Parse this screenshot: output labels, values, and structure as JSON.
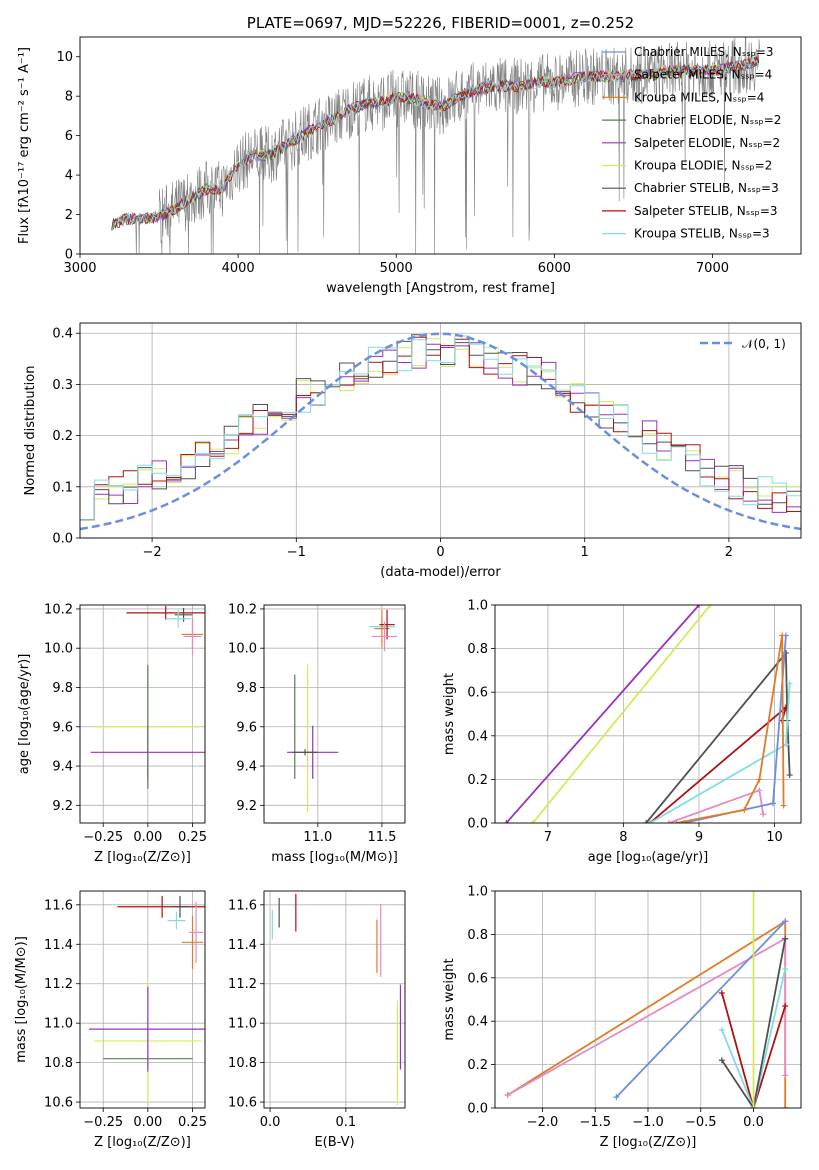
{
  "chart_data": [
    {
      "type": "line",
      "title": "PLATE=0697, MJD=52226, FIBERID=0001, z=0.252",
      "xlabel": "wavelength [Angstrom, rest frame]",
      "ylabel": "Flux [fλ10⁻¹⁷ erg cm⁻² s⁻¹ A⁻¹]",
      "xlim": [
        3000,
        7560
      ],
      "ylim": [
        0,
        11
      ],
      "xticks": [
        "3000",
        "4000",
        "5000",
        "6000",
        "7000"
      ],
      "yticks": [
        "0",
        "2",
        "4",
        "6",
        "8",
        "10"
      ],
      "grid": false,
      "legend_position": "top-right",
      "data_color": "#808080",
      "continuum": {
        "x": [
          3200,
          3300,
          3400,
          3500,
          3600,
          3700,
          3800,
          3900,
          4000,
          4100,
          4200,
          4300,
          4400,
          4500,
          4600,
          4700,
          4800,
          4900,
          5000,
          5100,
          5200,
          5300,
          5400,
          5500,
          5600,
          5700,
          5800,
          5900,
          6000,
          6200,
          6400,
          6600,
          6800,
          7000,
          7200,
          7300
        ],
        "y": [
          1.5,
          1.8,
          1.8,
          1.9,
          2.3,
          2.8,
          3.3,
          3.3,
          4.5,
          5.0,
          5.0,
          5.5,
          6.0,
          6.5,
          6.8,
          7.3,
          7.6,
          7.7,
          7.9,
          7.9,
          7.6,
          7.5,
          8.0,
          8.3,
          8.5,
          8.5,
          8.5,
          8.7,
          8.7,
          9.0,
          9.0,
          9.1,
          9.3,
          9.3,
          9.6,
          9.8
        ]
      },
      "series": [
        {
          "name": "Chabrier MILES, N_SSP=3",
          "color": "#6a8fe0"
        },
        {
          "name": "Salpeter MILES, N_SSP=4",
          "color": "#e58bc0"
        },
        {
          "name": "Kroupa MILES, N_SSP=4",
          "color": "#e07b2a"
        },
        {
          "name": "Chabrier ELODIE, N_SSP=2",
          "color": "#5a7a5a"
        },
        {
          "name": "Salpeter ELODIE, N_SSP=2",
          "color": "#9b30c0"
        },
        {
          "name": "Kroupa ELODIE, N_SSP=2",
          "color": "#d4ea5a"
        },
        {
          "name": "Chabrier STELIB, N_SSP=3",
          "color": "#505050"
        },
        {
          "name": "Salpeter STELIB, N_SSP=3",
          "color": "#b01010"
        },
        {
          "name": "Kroupa STELIB, N_SSP=3",
          "color": "#80dde0"
        }
      ]
    },
    {
      "type": "line",
      "xlabel": "(data-model)/error",
      "ylabel": "Normed distribution",
      "xlim": [
        -2.5,
        2.5
      ],
      "ylim": [
        0,
        0.42
      ],
      "xticks": [
        "−2",
        "−1",
        "0",
        "1",
        "2"
      ],
      "yticks": [
        "0.0",
        "0.1",
        "0.2",
        "0.3",
        "0.4"
      ],
      "grid": true,
      "legend_position": "top-right",
      "legend_label": "𝒩(0, 1)",
      "gauss": {
        "mu": 0,
        "sigma": 1,
        "color": "#6a8fe0"
      },
      "hist_colors": [
        "#d4ea5a",
        "#9b30c0",
        "#505050",
        "#b01010",
        "#80dde0"
      ],
      "hist_centers": [
        -2.3,
        -1.8,
        -1.3,
        -0.8,
        -0.3,
        0.0,
        0.3,
        0.8,
        1.3,
        1.8,
        2.3
      ],
      "hist_values": [
        0.05,
        0.08,
        0.16,
        0.25,
        0.31,
        0.35,
        0.33,
        0.29,
        0.22,
        0.14,
        0.08
      ]
    },
    {
      "type": "scatter",
      "xlabel": "Z [log₁₀(Z/Z⊙)]",
      "ylabel": "age  [log₁₀(age/yr)]",
      "xlim": [
        -0.38,
        0.32
      ],
      "ylim": [
        9.11,
        10.22
      ],
      "xticks": [
        "−0.25",
        "0.00",
        "0.25"
      ],
      "yticks": [
        "9.2",
        "9.4",
        "9.6",
        "9.8",
        "10.0",
        "10.2"
      ],
      "grid": true,
      "points": [
        {
          "x": 0.0,
          "y": 9.6,
          "xerr": 0.3,
          "yerr": 0.3,
          "color": "#d4ea5a"
        },
        {
          "x": 0.0,
          "y": 9.47,
          "xerr": 0.32,
          "yerr": 0.12,
          "color": "#9b30c0"
        },
        {
          "x": 0.0,
          "y": 9.6,
          "xerr": 0.0,
          "yerr": 0.3,
          "color": "#5a7a5a"
        },
        {
          "x": 0.1,
          "y": 10.18,
          "xerr": 0.22,
          "yerr": 0.02,
          "color": "#b01010"
        },
        {
          "x": 0.2,
          "y": 10.17,
          "xerr": 0.05,
          "yerr": 0.02,
          "color": "#505050"
        },
        {
          "x": 0.17,
          "y": 10.15,
          "xerr": 0.07,
          "yerr": 0.03,
          "color": "#80dde0"
        },
        {
          "x": 0.25,
          "y": 10.07,
          "xerr": 0.06,
          "yerr": 0.06,
          "color": "#e07b2a"
        },
        {
          "x": 0.25,
          "y": 10.06,
          "xerr": 0.05,
          "yerr": 0.08,
          "color": "#e58bc0"
        }
      ]
    },
    {
      "type": "scatter",
      "xlabel": "mass [log₁₀(M/M⊙)]",
      "ylabel": "",
      "xlim": [
        10.58,
        11.68
      ],
      "ylim": [
        9.11,
        10.22
      ],
      "xticks": [
        "11.0",
        "11.5"
      ],
      "yticks": [
        "9.2",
        "9.4",
        "9.6",
        "9.8",
        "10.0",
        "10.2"
      ],
      "grid": true,
      "points": [
        {
          "x": 10.82,
          "y": 9.6,
          "xerr": 0.0,
          "yerr": 0.25,
          "color": "#5a7a5a"
        },
        {
          "x": 10.92,
          "y": 9.54,
          "xerr": 0.0,
          "yerr": 0.36,
          "color": "#d4ea5a"
        },
        {
          "x": 10.96,
          "y": 9.47,
          "xerr": 0.2,
          "yerr": 0.12,
          "color": "#9b30c0"
        },
        {
          "x": 10.9,
          "y": 9.47,
          "xerr": 0.1,
          "yerr": 0.0,
          "color": "#505050"
        },
        {
          "x": 11.5,
          "y": 10.11,
          "xerr": 0.1,
          "yerr": 0.04,
          "color": "#80dde0"
        },
        {
          "x": 11.5,
          "y": 10.1,
          "xerr": 0.06,
          "yerr": 0.08,
          "color": "#e07b2a"
        },
        {
          "x": 11.54,
          "y": 10.12,
          "xerr": 0.06,
          "yerr": 0.06,
          "color": "#b01010"
        },
        {
          "x": 11.52,
          "y": 10.06,
          "xerr": 0.1,
          "yerr": 0.06,
          "color": "#e58bc0"
        }
      ]
    },
    {
      "type": "line",
      "xlabel": "age  [log₁₀(age/yr)]",
      "ylabel": "mass weight",
      "xlim": [
        6.3,
        10.35
      ],
      "ylim": [
        0,
        1.0
      ],
      "xticks": [
        "7",
        "8",
        "9",
        "10"
      ],
      "yticks": [
        "0.0",
        "0.2",
        "0.4",
        "0.6",
        "0.8",
        "1.0"
      ],
      "grid": true,
      "series": [
        {
          "color": "#9b30c0",
          "x": [
            6.45,
            9.0
          ],
          "y": [
            0.0,
            1.0
          ]
        },
        {
          "color": "#d4ea5a",
          "x": [
            6.8,
            9.15
          ],
          "y": [
            0.0,
            1.0
          ]
        },
        {
          "color": "#505050",
          "x": [
            8.3,
            10.15,
            10.17,
            10.2
          ],
          "y": [
            0.0,
            0.78,
            0.47,
            0.22
          ]
        },
        {
          "color": "#b01010",
          "x": [
            8.35,
            10.15,
            10.1
          ],
          "y": [
            0.0,
            0.53,
            0.47
          ]
        },
        {
          "color": "#80dde0",
          "x": [
            8.35,
            10.15,
            10.2
          ],
          "y": [
            0.0,
            0.36,
            0.64
          ]
        },
        {
          "color": "#e58bc0",
          "x": [
            8.6,
            9.8,
            9.85
          ],
          "y": [
            0.0,
            0.15,
            0.04
          ]
        },
        {
          "color": "#6a8fe0",
          "x": [
            8.8,
            9.98,
            10.15
          ],
          "y": [
            0.0,
            0.09,
            0.86
          ]
        },
        {
          "color": "#e07b2a",
          "x": [
            8.7,
            9.6,
            9.8,
            10.1,
            10.12
          ],
          "y": [
            0.0,
            0.06,
            0.2,
            0.86,
            0.08
          ]
        }
      ]
    },
    {
      "type": "scatter",
      "xlabel": "Z [log₁₀(Z/Z⊙)]",
      "ylabel": "mass [log₁₀(M/M⊙)]",
      "xlim": [
        -0.38,
        0.32
      ],
      "ylim": [
        10.57,
        11.67
      ],
      "xticks": [
        "−0.25",
        "0.00",
        "0.25"
      ],
      "yticks": [
        "10.6",
        "10.8",
        "11.0",
        "11.2",
        "11.4",
        "11.6"
      ],
      "grid": true,
      "points": [
        {
          "x": 0.0,
          "y": 10.82,
          "xerr": 0.25,
          "yerr": 0.0,
          "color": "#5a7a5a"
        },
        {
          "x": 0.0,
          "y": 10.91,
          "xerr": 0.3,
          "yerr": 0.3,
          "color": "#d4ea5a"
        },
        {
          "x": 0.0,
          "y": 10.97,
          "xerr": 0.33,
          "yerr": 0.2,
          "color": "#9b30c0"
        },
        {
          "x": 0.08,
          "y": 11.59,
          "xerr": 0.25,
          "yerr": 0.04,
          "color": "#b01010"
        },
        {
          "x": 0.18,
          "y": 11.59,
          "xerr": 0.05,
          "yerr": 0.04,
          "color": "#505050"
        },
        {
          "x": 0.16,
          "y": 11.52,
          "xerr": 0.05,
          "yerr": 0.03,
          "color": "#80dde0"
        },
        {
          "x": 0.25,
          "y": 11.41,
          "xerr": 0.06,
          "yerr": 0.12,
          "color": "#e07b2a"
        },
        {
          "x": 0.27,
          "y": 11.46,
          "xerr": 0.04,
          "yerr": 0.14,
          "color": "#e58bc0"
        }
      ]
    },
    {
      "type": "scatter",
      "xlabel": "E(B-V)",
      "ylabel": "",
      "xlim": [
        -0.008,
        0.178
      ],
      "ylim": [
        10.57,
        11.67
      ],
      "xticks": [
        "0.0",
        "0.1"
      ],
      "yticks": [
        "10.6",
        "10.8",
        "11.0",
        "11.2",
        "11.4",
        "11.6"
      ],
      "grid": true,
      "points": [
        {
          "x": 0.003,
          "y": 11.5,
          "xerr": 0,
          "yerr": 0.06,
          "color": "#80dde0"
        },
        {
          "x": 0.012,
          "y": 11.56,
          "xerr": 0,
          "yerr": 0.06,
          "color": "#505050"
        },
        {
          "x": 0.034,
          "y": 11.56,
          "xerr": 0,
          "yerr": 0.08,
          "color": "#b01010"
        },
        {
          "x": 0.141,
          "y": 11.39,
          "xerr": 0,
          "yerr": 0.12,
          "color": "#e07b2a"
        },
        {
          "x": 0.146,
          "y": 11.42,
          "xerr": 0,
          "yerr": 0.17,
          "color": "#e58bc0"
        },
        {
          "x": 0.168,
          "y": 10.85,
          "xerr": 0,
          "yerr": 0.25,
          "color": "#d4ea5a"
        },
        {
          "x": 0.172,
          "y": 10.98,
          "xerr": 0,
          "yerr": 0.2,
          "color": "#9b30c0"
        }
      ]
    },
    {
      "type": "line",
      "xlabel": "Z [log₁₀(Z/Z⊙)]",
      "ylabel": "mass weight",
      "xlim": [
        -2.45,
        0.45
      ],
      "ylim": [
        0,
        1.0
      ],
      "xticks": [
        "−2.0",
        "−1.5",
        "−1.0",
        "−0.5",
        "0.0"
      ],
      "yticks": [
        "0.0",
        "0.2",
        "0.4",
        "0.6",
        "0.8",
        "1.0"
      ],
      "grid": true,
      "series": [
        {
          "color": "#e07b2a",
          "x": [
            -2.33,
            0.3,
            0.3
          ],
          "y": [
            0.06,
            0.86,
            0.0
          ]
        },
        {
          "color": "#e58bc0",
          "x": [
            -2.33,
            0.3,
            0.3
          ],
          "y": [
            0.06,
            0.78,
            0.15
          ]
        },
        {
          "color": "#6a8fe0",
          "x": [
            -1.3,
            0.3
          ],
          "y": [
            0.05,
            0.86
          ]
        },
        {
          "color": "#b01010",
          "x": [
            -0.3,
            0.0,
            0.3
          ],
          "y": [
            0.53,
            0.0,
            0.47
          ]
        },
        {
          "color": "#80dde0",
          "x": [
            -0.3,
            0.0,
            0.3
          ],
          "y": [
            0.36,
            0.0,
            0.64
          ]
        },
        {
          "color": "#505050",
          "x": [
            -0.3,
            0.0,
            0.3
          ],
          "y": [
            0.22,
            0.0,
            0.78
          ]
        },
        {
          "color": "#d4ea5a",
          "x": [
            0.0,
            0.0
          ],
          "y": [
            0.0,
            1.0
          ]
        }
      ]
    }
  ]
}
